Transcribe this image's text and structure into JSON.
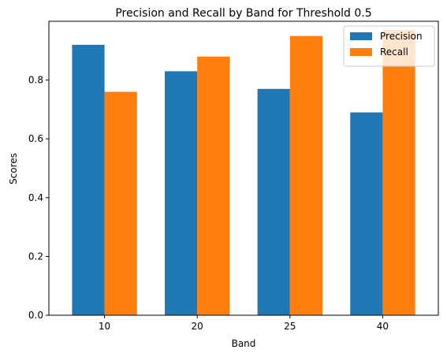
{
  "chart_data": {
    "type": "bar",
    "title": "Precision and Recall by Band for Threshold 0.5",
    "xlabel": "Band",
    "ylabel": "Scores",
    "categories": [
      "10",
      "20",
      "25",
      "40"
    ],
    "series": [
      {
        "name": "Precision",
        "values": [
          0.92,
          0.83,
          0.77,
          0.69
        ],
        "color": "#1f77b4"
      },
      {
        "name": "Recall",
        "values": [
          0.76,
          0.88,
          0.95,
          0.97
        ],
        "color": "#ff7f0e"
      }
    ],
    "ylim": [
      0,
      1.0
    ],
    "yticks": [
      "0.0",
      "0.2",
      "0.4",
      "0.6",
      "0.8"
    ],
    "grid": false,
    "legend_position": "upper right"
  }
}
